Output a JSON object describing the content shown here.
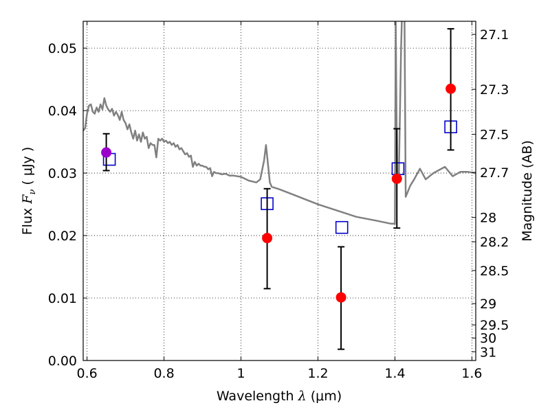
{
  "chart_data": {
    "type": "scatter",
    "xlabel": "Wavelength",
    "xlabel_symbol": "λ",
    "xlabel_unit": "(μm)",
    "ylabel": "Flux",
    "ylabel_symbol": "F",
    "ylabel_subscript": "ν",
    "ylabel_unit": "( μJy )",
    "y2label": "Magnitude (AB)",
    "xlim": [
      0.59,
      1.61
    ],
    "ylim": [
      0.0,
      0.0543
    ],
    "grid": true,
    "grid_style": "dotted",
    "xticks": [
      0.6,
      0.8,
      1.0,
      1.2,
      1.4,
      1.6
    ],
    "xtick_labels": [
      "0.6",
      "0.8",
      "1",
      "1.2",
      "1.4",
      "1.6"
    ],
    "yticks": [
      0.0,
      0.01,
      0.02,
      0.03,
      0.04,
      0.05
    ],
    "ytick_labels": [
      "0.00",
      "0.01",
      "0.02",
      "0.03",
      "0.04",
      "0.05"
    ],
    "y2ticks": [
      {
        "label": "27.1",
        "flux": 0.0522
      },
      {
        "label": "27.3",
        "flux": 0.0434
      },
      {
        "label": "27.5",
        "flux": 0.0362
      },
      {
        "label": "27.7",
        "flux": 0.0301
      },
      {
        "label": "28",
        "flux": 0.0229
      },
      {
        "label": "28.2",
        "flux": 0.019
      },
      {
        "label": "28.5",
        "flux": 0.0144
      },
      {
        "label": "29",
        "flux": 0.0091
      },
      {
        "label": "29.5",
        "flux": 0.0057
      },
      {
        "label": "30",
        "flux": 0.0036
      },
      {
        "label": "31",
        "flux": 0.0014
      }
    ],
    "model_spectrum": {
      "color": "#808080",
      "points": [
        [
          0.59,
          0.0368
        ],
        [
          0.595,
          0.0372
        ],
        [
          0.6,
          0.0395
        ],
        [
          0.605,
          0.0408
        ],
        [
          0.61,
          0.041
        ],
        [
          0.615,
          0.0398
        ],
        [
          0.62,
          0.0395
        ],
        [
          0.625,
          0.0405
        ],
        [
          0.63,
          0.0398
        ],
        [
          0.635,
          0.041
        ],
        [
          0.64,
          0.0402
        ],
        [
          0.645,
          0.042
        ],
        [
          0.65,
          0.0408
        ],
        [
          0.655,
          0.0402
        ],
        [
          0.66,
          0.0398
        ],
        [
          0.665,
          0.0403
        ],
        [
          0.67,
          0.0392
        ],
        [
          0.675,
          0.0398
        ],
        [
          0.68,
          0.0393
        ],
        [
          0.685,
          0.0385
        ],
        [
          0.69,
          0.0398
        ],
        [
          0.695,
          0.0385
        ],
        [
          0.7,
          0.038
        ],
        [
          0.705,
          0.037
        ],
        [
          0.71,
          0.0378
        ],
        [
          0.715,
          0.0365
        ],
        [
          0.72,
          0.0355
        ],
        [
          0.725,
          0.0368
        ],
        [
          0.73,
          0.0352
        ],
        [
          0.735,
          0.0362
        ],
        [
          0.74,
          0.035
        ],
        [
          0.745,
          0.0365
        ],
        [
          0.75,
          0.0355
        ],
        [
          0.755,
          0.0358
        ],
        [
          0.76,
          0.034
        ],
        [
          0.765,
          0.0348
        ],
        [
          0.77,
          0.0345
        ],
        [
          0.775,
          0.0345
        ],
        [
          0.78,
          0.0325
        ],
        [
          0.785,
          0.0355
        ],
        [
          0.79,
          0.0352
        ],
        [
          0.795,
          0.0355
        ],
        [
          0.8,
          0.035
        ],
        [
          0.805,
          0.0352
        ],
        [
          0.81,
          0.0348
        ],
        [
          0.815,
          0.035
        ],
        [
          0.82,
          0.0345
        ],
        [
          0.825,
          0.0348
        ],
        [
          0.83,
          0.0342
        ],
        [
          0.835,
          0.0345
        ],
        [
          0.84,
          0.0338
        ],
        [
          0.845,
          0.034
        ],
        [
          0.85,
          0.0335
        ],
        [
          0.855,
          0.033
        ],
        [
          0.86,
          0.0332
        ],
        [
          0.865,
          0.0326
        ],
        [
          0.87,
          0.0328
        ],
        [
          0.875,
          0.031
        ],
        [
          0.88,
          0.0318
        ],
        [
          0.885,
          0.0312
        ],
        [
          0.89,
          0.0315
        ],
        [
          0.895,
          0.0312
        ],
        [
          0.9,
          0.0312
        ],
        [
          0.905,
          0.031
        ],
        [
          0.91,
          0.031
        ],
        [
          0.915,
          0.0306
        ],
        [
          0.92,
          0.0308
        ],
        [
          0.925,
          0.0295
        ],
        [
          0.93,
          0.0302
        ],
        [
          0.935,
          0.03
        ],
        [
          0.94,
          0.03
        ],
        [
          0.95,
          0.0298
        ],
        [
          0.96,
          0.0299
        ],
        [
          0.97,
          0.0296
        ],
        [
          0.98,
          0.0296
        ],
        [
          1.0,
          0.0294
        ],
        [
          1.02,
          0.0288
        ],
        [
          1.04,
          0.0285
        ],
        [
          1.05,
          0.029
        ],
        [
          1.06,
          0.032
        ],
        [
          1.065,
          0.0345
        ],
        [
          1.07,
          0.0315
        ],
        [
          1.075,
          0.0285
        ],
        [
          1.08,
          0.0278
        ],
        [
          1.1,
          0.0274
        ],
        [
          1.15,
          0.0262
        ],
        [
          1.2,
          0.025
        ],
        [
          1.25,
          0.024
        ],
        [
          1.3,
          0.023
        ],
        [
          1.35,
          0.0224
        ],
        [
          1.39,
          0.0219
        ],
        [
          1.4,
          0.0219
        ],
        [
          1.402,
          0.0545
        ],
        [
          1.404,
          0.04
        ],
        [
          1.406,
          0.029
        ],
        [
          1.41,
          0.0285
        ],
        [
          1.416,
          0.05
        ],
        [
          1.418,
          0.0545
        ],
        [
          1.425,
          0.0545
        ],
        [
          1.428,
          0.0262
        ],
        [
          1.44,
          0.028
        ],
        [
          1.45,
          0.029
        ],
        [
          1.465,
          0.0307
        ],
        [
          1.48,
          0.029
        ],
        [
          1.5,
          0.03
        ],
        [
          1.53,
          0.031
        ],
        [
          1.55,
          0.0295
        ],
        [
          1.57,
          0.0302
        ],
        [
          1.59,
          0.0302
        ],
        [
          1.61,
          0.03
        ]
      ]
    },
    "model_photometry": {
      "marker": "open-square",
      "color": "#0000cc",
      "points": [
        {
          "x": 0.658,
          "y": 0.0322
        },
        {
          "x": 1.068,
          "y": 0.0251
        },
        {
          "x": 1.262,
          "y": 0.0213
        },
        {
          "x": 1.408,
          "y": 0.0307
        },
        {
          "x": 1.545,
          "y": 0.0374
        }
      ]
    },
    "observations": {
      "marker": "filled-circle",
      "points": [
        {
          "x": 0.65,
          "y": 0.0333,
          "yerr_low": 0.0304,
          "yerr_high": 0.0363,
          "color": "#9900cc"
        },
        {
          "x": 1.068,
          "y": 0.0196,
          "yerr_low": 0.0115,
          "yerr_high": 0.0275,
          "color": "#ff0000"
        },
        {
          "x": 1.26,
          "y": 0.0101,
          "yerr_low": 0.0018,
          "yerr_high": 0.0182,
          "color": "#ff0000"
        },
        {
          "x": 1.405,
          "y": 0.0291,
          "yerr_low": 0.0212,
          "yerr_high": 0.0371,
          "color": "#ff0000"
        },
        {
          "x": 1.545,
          "y": 0.0435,
          "yerr_low": 0.0337,
          "yerr_high": 0.0531,
          "color": "#ff0000"
        }
      ]
    }
  }
}
